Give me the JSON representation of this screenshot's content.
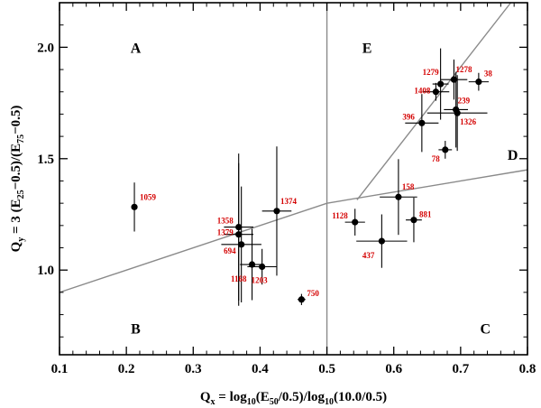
{
  "chart_data": {
    "type": "scatter",
    "xlabel": {
      "main": "Q",
      "main_sub": "x",
      "eq": " = log",
      "log_sub": "10",
      "open": "(E",
      "e_sub": "50",
      "mid": "/0.5)/log",
      "log_sub2": "10",
      "tail": "(10.0/0.5)"
    },
    "ylabel": {
      "main": "Q",
      "main_sub": "y",
      "p1": " = 3 (E",
      "sub1": "25",
      "p2": "−0.5)/(E",
      "sub2": "75",
      "p3": "−0.5)"
    },
    "xlim": [
      0.1,
      0.8
    ],
    "ylim": [
      0.62,
      2.2
    ],
    "xticks": [
      0.1,
      0.2,
      0.3,
      0.4,
      0.5,
      0.6,
      0.7,
      0.8
    ],
    "xtick_labels": [
      "0.1",
      "0.2",
      "0.3",
      "0.4",
      "0.5",
      "0.6",
      "0.7",
      "0.8"
    ],
    "yticks": [
      1.0,
      1.5,
      2.0
    ],
    "ytick_labels": [
      "1.0",
      "1.5",
      "2.0"
    ],
    "regions": [
      {
        "label": "A",
        "x": 0.214,
        "y": 2.0
      },
      {
        "label": "B",
        "x": 0.214,
        "y": 0.74
      },
      {
        "label": "C",
        "x": 0.737,
        "y": 0.74
      },
      {
        "label": "D",
        "x": 0.778,
        "y": 1.52
      },
      {
        "label": "E",
        "x": 0.56,
        "y": 2.0
      }
    ],
    "boundaries": [
      {
        "name": "vertical-divider",
        "x": [
          0.5,
          0.5
        ],
        "y": [
          0.62,
          2.2
        ]
      },
      {
        "name": "lower-boundary",
        "x": [
          0.1,
          0.5,
          0.8
        ],
        "y": [
          0.9,
          1.3,
          1.45
        ]
      },
      {
        "name": "upper-boundary",
        "x": [
          0.545,
          0.775
        ],
        "y": [
          1.315,
          2.2
        ]
      }
    ],
    "points": [
      {
        "label": "1059",
        "x": 0.212,
        "y": 1.283,
        "xerr": 0,
        "yerr": 0.11
      },
      {
        "label": "1358",
        "x": 0.368,
        "y": 1.193,
        "xerr": 0.022,
        "yerr": 0.33
      },
      {
        "label": "1379",
        "x": 0.368,
        "y": 1.16,
        "xerr": 0.022,
        "yerr": 0.32
      },
      {
        "label": "694",
        "x": 0.372,
        "y": 1.115,
        "xerr": 0.03,
        "yerr": 0.26
      },
      {
        "label": "1374",
        "x": 0.425,
        "y": 1.265,
        "xerr": 0.022,
        "yerr": 0.29
      },
      {
        "label": "1168",
        "x": 0.388,
        "y": 1.025,
        "xerr": 0.018,
        "yerr": 0.16
      },
      {
        "label": "1203",
        "x": 0.403,
        "y": 1.015,
        "xerr": 0.022,
        "yerr": 0.08
      },
      {
        "label": "750",
        "x": 0.462,
        "y": 0.868,
        "xerr": 0.006,
        "yerr": 0.025
      },
      {
        "label": "1128",
        "x": 0.542,
        "y": 1.215,
        "xerr": 0.015,
        "yerr": 0.06
      },
      {
        "label": "437",
        "x": 0.582,
        "y": 1.13,
        "xerr": 0.038,
        "yerr": 0.12
      },
      {
        "label": "158",
        "x": 0.607,
        "y": 1.328,
        "xerr": 0.028,
        "yerr": 0.17
      },
      {
        "label": "881",
        "x": 0.63,
        "y": 1.225,
        "xerr": 0.012,
        "yerr": 0.1
      },
      {
        "label": "1279",
        "x": 0.67,
        "y": 1.835,
        "xerr": 0.012,
        "yerr": 0.16
      },
      {
        "label": "1408",
        "x": 0.663,
        "y": 1.8,
        "xerr": 0.02,
        "yerr": 0.04
      },
      {
        "label": "1278",
        "x": 0.69,
        "y": 1.855,
        "xerr": 0.02,
        "yerr": 0.09
      },
      {
        "label": "38",
        "x": 0.727,
        "y": 1.845,
        "xerr": 0.015,
        "yerr": 0.04
      },
      {
        "label": "239",
        "x": 0.693,
        "y": 1.72,
        "xerr": 0.018,
        "yerr": 0.17
      },
      {
        "label": "1326",
        "x": 0.695,
        "y": 1.705,
        "xerr": 0.045,
        "yerr": 0.17
      },
      {
        "label": "396",
        "x": 0.642,
        "y": 1.66,
        "xerr": 0.025,
        "yerr": 0.13
      },
      {
        "label": "78",
        "x": 0.677,
        "y": 1.54,
        "xerr": 0.01,
        "yerr": 0.04
      }
    ]
  }
}
